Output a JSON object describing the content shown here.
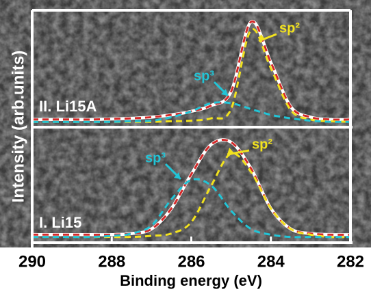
{
  "chart_data": [
    {
      "type": "line",
      "label": "II. Li15A",
      "x": [
        290,
        289.5,
        289,
        288.5,
        288,
        287.5,
        287,
        286.5,
        286,
        285.5,
        285,
        284.5,
        284,
        283.5,
        283,
        282.5,
        282
      ],
      "xlim": [
        290,
        282
      ],
      "ylim": [
        0,
        1
      ],
      "series": [
        {
          "color": "#ffffff",
          "dashed": false,
          "values": [
            0.06,
            0.06,
            0.06,
            0.06,
            0.065,
            0.07,
            0.08,
            0.1,
            0.13,
            0.18,
            0.3,
            0.9,
            0.55,
            0.17,
            0.08,
            0.06,
            0.06
          ]
        },
        {
          "color": "#d42a2a",
          "dashed": true,
          "values": [
            0.06,
            0.06,
            0.06,
            0.06,
            0.065,
            0.07,
            0.08,
            0.1,
            0.13,
            0.18,
            0.3,
            0.9,
            0.55,
            0.17,
            0.08,
            0.06,
            0.06
          ]
        },
        {
          "color": "#f2e21e",
          "dashed": true,
          "values": [
            0.04,
            0.04,
            0.04,
            0.04,
            0.04,
            0.04,
            0.04,
            0.045,
            0.05,
            0.07,
            0.15,
            0.83,
            0.5,
            0.14,
            0.06,
            0.045,
            0.04
          ]
        },
        {
          "color": "#22c4d6",
          "dashed": true,
          "values": [
            0.04,
            0.04,
            0.04,
            0.04,
            0.04,
            0.045,
            0.05,
            0.08,
            0.13,
            0.2,
            0.2,
            0.15,
            0.1,
            0.07,
            0.05,
            0.04,
            0.04
          ]
        }
      ],
      "annotations": [
        {
          "text": "sp²",
          "color": "#f2e21e"
        },
        {
          "text": "sp³",
          "color": "#22c4d6"
        }
      ]
    },
    {
      "type": "line",
      "label": "I. Li15",
      "x": [
        290,
        289.5,
        289,
        288.5,
        288,
        287.5,
        287,
        286.5,
        286,
        285.5,
        285,
        284.5,
        284,
        283.5,
        283,
        282.5,
        282
      ],
      "xlim": [
        290,
        282
      ],
      "ylim": [
        0,
        1
      ],
      "xticks": [
        290,
        288,
        286,
        284,
        282
      ],
      "xlabel": "Binding energy (eV)",
      "ylabel": "Intensity (arb.units)",
      "series": [
        {
          "color": "#ffffff",
          "dashed": false,
          "values": [
            0.07,
            0.07,
            0.07,
            0.07,
            0.07,
            0.08,
            0.12,
            0.3,
            0.6,
            0.86,
            0.88,
            0.65,
            0.3,
            0.12,
            0.08,
            0.07,
            0.07
          ]
        },
        {
          "color": "#d42a2a",
          "dashed": true,
          "values": [
            0.07,
            0.07,
            0.07,
            0.07,
            0.07,
            0.08,
            0.12,
            0.3,
            0.6,
            0.86,
            0.88,
            0.65,
            0.3,
            0.12,
            0.08,
            0.07,
            0.07
          ]
        },
        {
          "color": "#f2e21e",
          "dashed": true,
          "values": [
            0.05,
            0.05,
            0.05,
            0.05,
            0.05,
            0.05,
            0.06,
            0.08,
            0.18,
            0.5,
            0.78,
            0.62,
            0.3,
            0.12,
            0.07,
            0.05,
            0.05
          ]
        },
        {
          "color": "#22c4d6",
          "dashed": true,
          "values": [
            0.05,
            0.05,
            0.05,
            0.05,
            0.06,
            0.08,
            0.15,
            0.38,
            0.55,
            0.5,
            0.28,
            0.12,
            0.07,
            0.05,
            0.05,
            0.05,
            0.05
          ]
        }
      ],
      "annotations": [
        {
          "text": "sp²",
          "color": "#f2e21e"
        },
        {
          "text": "sp³",
          "color": "#22c4d6"
        }
      ]
    }
  ]
}
